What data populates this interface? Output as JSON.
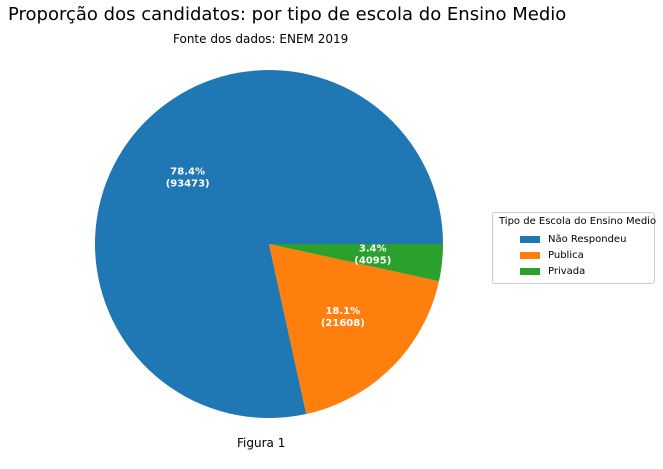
{
  "chart_data": {
    "type": "pie",
    "title": "Proporção dos candidatos: por tipo de escola do Ensino Medio",
    "subtitle": "Fonte dos dados: ENEM 2019",
    "caption": "Figura 1",
    "legend_title": "Tipo de Escola do Ensino Medio",
    "legend_position": "right",
    "categories": [
      "Não Respondeu",
      "Publica",
      "Privada"
    ],
    "values": [
      93473,
      21608,
      4095
    ],
    "percentages": [
      78.4,
      18.1,
      3.4
    ],
    "slice_labels": [
      {
        "percent": "78.4%",
        "count": "(93473)"
      },
      {
        "percent": "18.1%",
        "count": "(21608)"
      },
      {
        "percent": "3.4%",
        "count": "(4095)"
      }
    ],
    "colors": [
      "#1f77b4",
      "#ff7f0e",
      "#2ca02c"
    ],
    "start_angle_deg": 0,
    "direction": "counterclockwise"
  }
}
